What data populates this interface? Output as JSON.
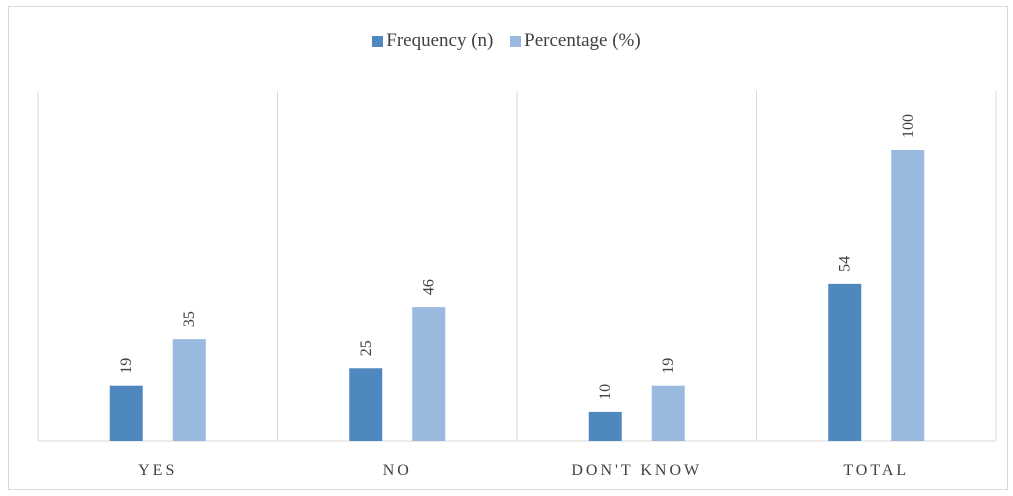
{
  "chart_data": {
    "type": "bar",
    "categories": [
      "YES",
      "NO",
      "DON'T KNOW",
      "TOTAL"
    ],
    "series": [
      {
        "name": "Frequency (n)",
        "values": [
          19,
          25,
          10,
          54
        ],
        "color": "#4f88be"
      },
      {
        "name": "Percentage (%)",
        "values": [
          35,
          46,
          19,
          100
        ],
        "color": "#9ab9df"
      }
    ],
    "ylim": [
      0,
      100
    ],
    "legend_position": "top",
    "grid": "vertical-category-separators",
    "data_labels_rotated": true
  }
}
